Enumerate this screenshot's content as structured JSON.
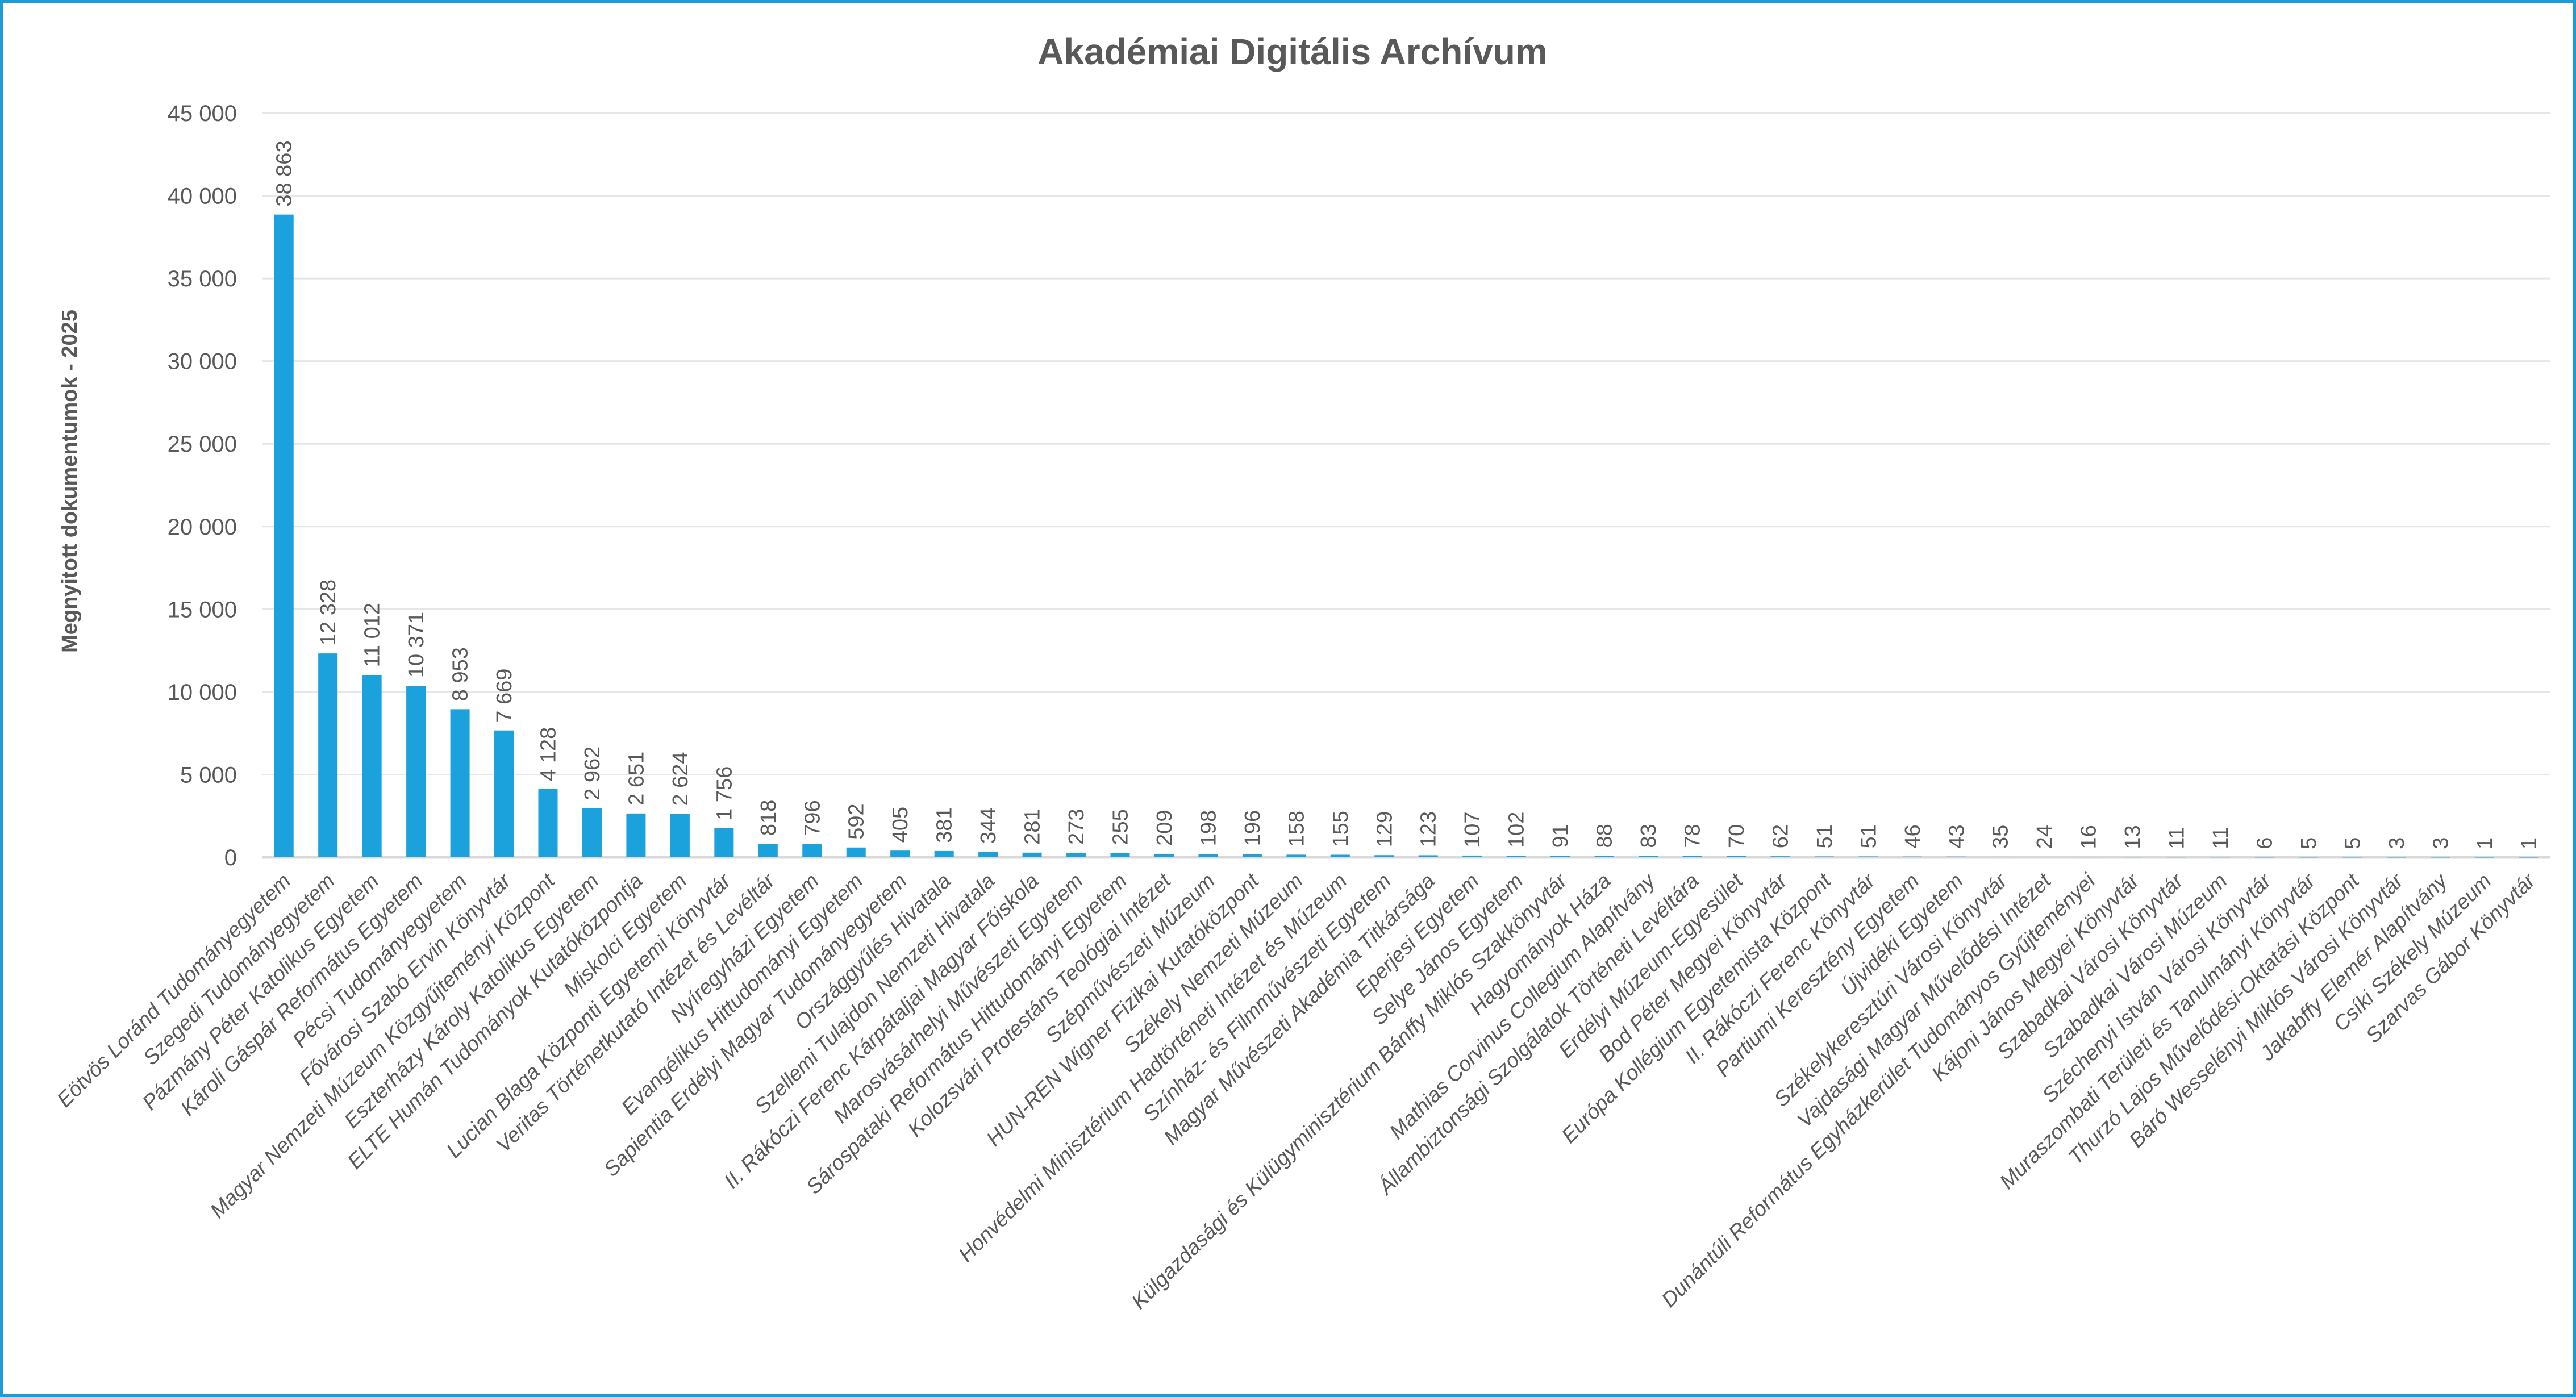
{
  "chart_data": {
    "type": "bar",
    "title": "Akadémiai Digitális Archívum",
    "xlabel": "",
    "ylabel": "Megnyitott dokumentumok - 2025",
    "ylim": [
      0,
      45000
    ],
    "yticks": [
      0,
      5000,
      10000,
      15000,
      20000,
      25000,
      30000,
      35000,
      40000,
      45000
    ],
    "ytick_labels": [
      "0",
      "5 000",
      "10 000",
      "15 000",
      "20 000",
      "25 000",
      "30 000",
      "35 000",
      "40 000",
      "45 000"
    ],
    "grid": true,
    "legend": "none",
    "bar_color": "#1BA1DC",
    "categories": [
      "Eötvös Loránd Tudományegyetem",
      "Szegedi Tudományegyetem",
      "Pázmány Péter Katolikus Egyetem",
      "Károli Gáspár Református Egyetem",
      "Pécsi Tudományegyetem",
      "Fővárosi Szabó Ervin Könyvtár",
      "Magyar Nemzeti Múzeum Közgyűjteményi Központ",
      "Eszterházy Károly Katolikus Egyetem",
      "ELTE Humán Tudományok Kutatóközpontja",
      "Miskolci Egyetem",
      "Lucian Blaga Központi Egyetemi Könyvtár",
      "Veritas Történetkutató Intézet és Levéltár",
      "Nyíregyházi Egyetem",
      "Evangélikus Hittudományi Egyetem",
      "Sapientia Erdélyi Magyar Tudományegyetem",
      "Országgyűlés Hivatala",
      "Szellemi Tulajdon Nemzeti Hivatala",
      "II. Rákóczi Ferenc Kárpátaljai Magyar Főiskola",
      "Marosvásárhelyi Művészeti Egyetem",
      "Sárospataki Református Hittudományi Egyetem",
      "Kolozsvári Protestáns Teológiai Intézet",
      "Szépművészeti Múzeum",
      "HUN-REN Wigner Fizikai Kutatóközpont",
      "Székely Nemzeti Múzeum",
      "Honvédelmi Minisztérium Hadtörténeti Intézet és Múzeum",
      "Színház- és Filmművészeti Egyetem",
      "Magyar Művészeti Akadémia Titkársága",
      "Eperjesi Egyetem",
      "Selye János Egyetem",
      "Külgazdasági és Külügyminisztérium Bánffy Miklós Szakkönyvtár",
      "Hagyományok Háza",
      "Mathias Corvinus Collegium Alapítvány",
      "Állambiztonsági Szolgálatok Történeti Levéltára",
      "Erdélyi Múzeum-Egyesület",
      "Bod Péter Megyei Könyvtár",
      "Európa Kollégium Egyetemista Központ",
      "II. Rákóczi Ferenc Könyvtár",
      "Partiumi Keresztény Egyetem",
      "Újvidéki Egyetem",
      "Székelykeresztúri Városi Könyvtár",
      "Vajdasági Magyar Művelődési Intézet",
      "Dunántúli Református Egyházkerület Tudományos Gyűjteményei",
      "Kájoni János Megyei Könyvtár",
      "Szabadkai Városi Könyvtár",
      "Szabadkai Városi Múzeum",
      "Széchenyi István Városi Könyvtár",
      "Muraszombati Területi és Tanulmányi Könyvtár",
      "Thurzó Lajos Művelődési-Oktatási Központ",
      "Báró Wesselényi Miklós Városi Könyvtár",
      "Jakabffy Elemér Alapítvány",
      "Csíki Székely Múzeum",
      "Szarvas Gábor Könyvtár"
    ],
    "values": [
      38863,
      12328,
      11012,
      10371,
      8953,
      7669,
      4128,
      2962,
      2651,
      2624,
      1756,
      818,
      796,
      592,
      405,
      381,
      344,
      281,
      273,
      255,
      209,
      198,
      196,
      158,
      155,
      129,
      123,
      107,
      102,
      91,
      88,
      83,
      78,
      70,
      62,
      51,
      51,
      46,
      43,
      35,
      24,
      16,
      13,
      11,
      11,
      6,
      5,
      5,
      3,
      3,
      1,
      1
    ],
    "value_labels": [
      "38 863",
      "12 328",
      "11 012",
      "10 371",
      "8 953",
      "7 669",
      "4 128",
      "2 962",
      "2 651",
      "2 624",
      "1 756",
      "818",
      "796",
      "592",
      "405",
      "381",
      "344",
      "281",
      "273",
      "255",
      "209",
      "198",
      "196",
      "158",
      "155",
      "129",
      "123",
      "107",
      "102",
      "91",
      "88",
      "83",
      "78",
      "70",
      "62",
      "51",
      "51",
      "46",
      "43",
      "35",
      "24",
      "16",
      "13",
      "11",
      "11",
      "6",
      "5",
      "5",
      "3",
      "3",
      "1",
      "1"
    ]
  }
}
